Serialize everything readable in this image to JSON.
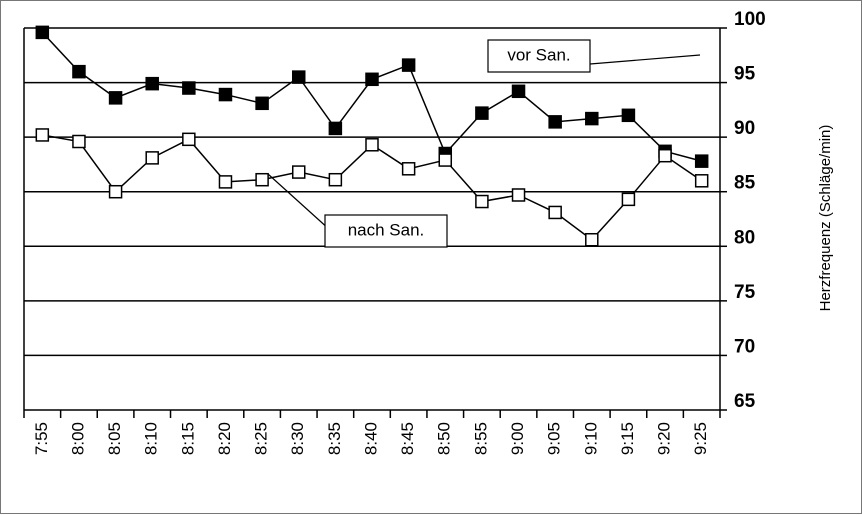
{
  "chart_data": {
    "type": "line",
    "y_label": "Herzfrequenz (Schläge/min)",
    "categories": [
      "7:55",
      "8:00",
      "8:05",
      "8:10",
      "8:15",
      "8:20",
      "8:25",
      "8:30",
      "8:35",
      "8:40",
      "8:45",
      "8:50",
      "8:55",
      "9:00",
      "9:05",
      "9:10",
      "9:15",
      "9:20",
      "9:25"
    ],
    "series": [
      {
        "name": "vor San.",
        "color": "#000000",
        "marker": "filled-square",
        "values": [
          99.6,
          96.0,
          93.6,
          94.9,
          94.5,
          93.9,
          93.1,
          95.5,
          90.8,
          95.3,
          96.6,
          88.5,
          92.2,
          94.2,
          91.4,
          91.7,
          92.0,
          88.7,
          87.8
        ]
      },
      {
        "name": "nach San.",
        "color": "#000000",
        "marker": "open-square",
        "values": [
          90.2,
          89.6,
          85.0,
          88.1,
          89.8,
          85.9,
          86.1,
          86.8,
          86.1,
          89.3,
          87.1,
          87.9,
          84.1,
          84.7,
          83.1,
          80.6,
          84.3,
          88.3,
          86.0
        ]
      }
    ],
    "ylim": [
      65,
      100
    ],
    "yticks": [
      65,
      70,
      75,
      80,
      85,
      90,
      95,
      100
    ],
    "y_axis_side": "right",
    "grid": true
  }
}
